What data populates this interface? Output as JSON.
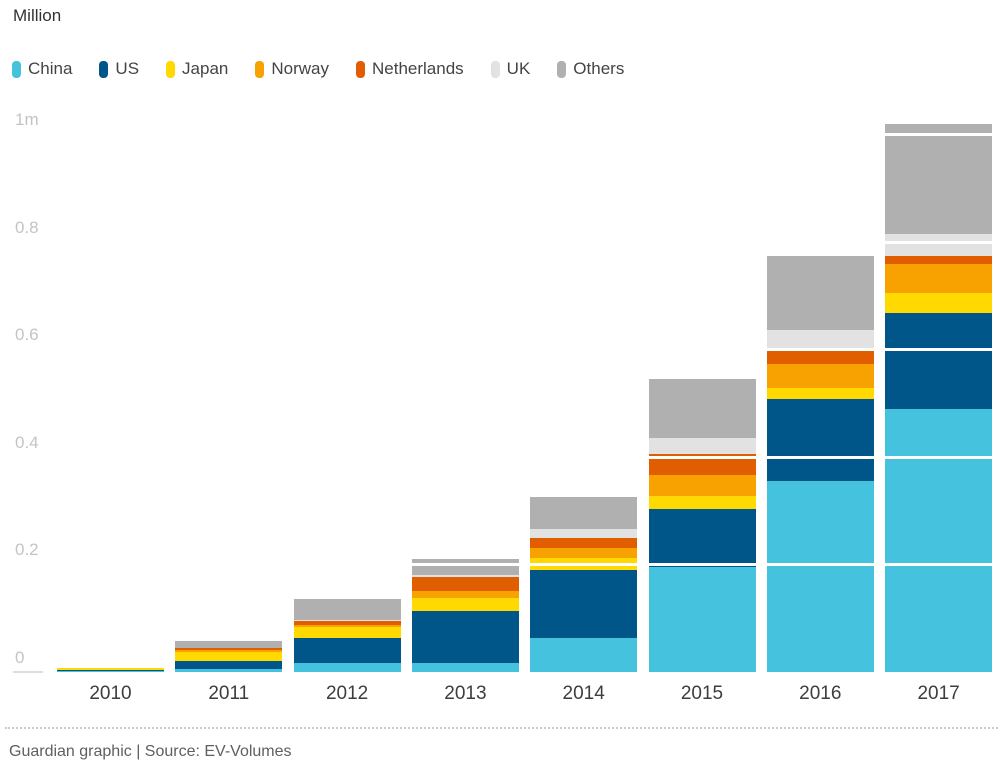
{
  "title": "Million",
  "legend": [
    {
      "label": "China",
      "color": "#45c2dd"
    },
    {
      "label": "US",
      "color": "#005689"
    },
    {
      "label": "Japan",
      "color": "#ffd900"
    },
    {
      "label": "Norway",
      "color": "#f7a200"
    },
    {
      "label": "Netherlands",
      "color": "#e05e00"
    },
    {
      "label": "UK",
      "color": "#e2e2e2"
    },
    {
      "label": "Others",
      "color": "#b0b0b0"
    }
  ],
  "chart_data": {
    "type": "bar",
    "stacked": true,
    "title": "Million",
    "xlabel": "",
    "ylabel": "Million",
    "categories": [
      "2010",
      "2011",
      "2012",
      "2013",
      "2014",
      "2015",
      "2016",
      "2017"
    ],
    "series": [
      {
        "name": "China",
        "color": "#45c2dd",
        "values": [
          0.001,
          0.005,
          0.016,
          0.016,
          0.063,
          0.195,
          0.355,
          0.489
        ]
      },
      {
        "name": "US",
        "color": "#005689",
        "values": [
          0.002,
          0.016,
          0.048,
          0.097,
          0.126,
          0.108,
          0.152,
          0.178
        ]
      },
      {
        "name": "Japan",
        "color": "#ffd900",
        "values": [
          0.004,
          0.017,
          0.02,
          0.024,
          0.022,
          0.024,
          0.02,
          0.037
        ]
      },
      {
        "name": "Norway",
        "color": "#f7a200",
        "values": [
          0.0,
          0.003,
          0.004,
          0.013,
          0.019,
          0.039,
          0.046,
          0.054
        ]
      },
      {
        "name": "Netherlands",
        "color": "#e05e00",
        "values": [
          0.0,
          0.003,
          0.007,
          0.026,
          0.019,
          0.039,
          0.026,
          0.015
        ]
      },
      {
        "name": "UK",
        "color": "#e2e2e2",
        "values": [
          0.0,
          0.001,
          0.002,
          0.004,
          0.017,
          0.03,
          0.037,
          0.041
        ]
      },
      {
        "name": "Others",
        "color": "#b0b0b0",
        "values": [
          0.001,
          0.012,
          0.039,
          0.031,
          0.059,
          0.11,
          0.138,
          0.204
        ]
      }
    ],
    "yticks": [
      {
        "label": "1m",
        "value": 1.0
      },
      {
        "label": "0.8",
        "value": 0.8
      },
      {
        "label": "0.6",
        "value": 0.6
      },
      {
        "label": "0.4",
        "value": 0.4
      },
      {
        "label": "0.2",
        "value": 0.2
      },
      {
        "label": "0",
        "value": 0.0
      }
    ],
    "ylim": [
      0,
      1.02
    ],
    "grid": "white-lines-over-bars",
    "legend_position": "top"
  },
  "footer": {
    "text": "Guardian graphic | Source: EV-Volumes"
  }
}
